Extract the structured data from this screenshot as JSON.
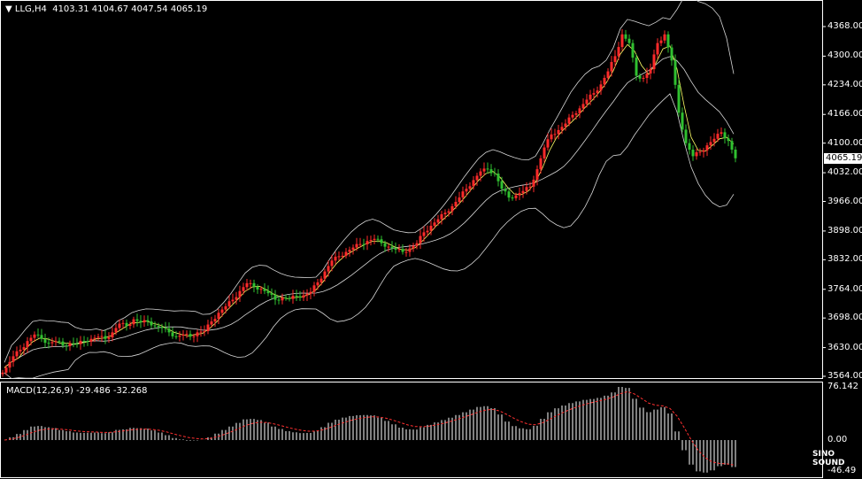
{
  "header": {
    "symbol": "LLG,H4",
    "open": "4103.31",
    "high": "4104.67",
    "low": "4047.54",
    "close": "4065.19"
  },
  "macd_header": {
    "label": "MACD(12,26,9)",
    "main": "-29.486",
    "signal": "-32.268"
  },
  "current_price": "4065.19",
  "price_ticks": [
    "4368.00",
    "4300.00",
    "4234.00",
    "4166.00",
    "4100.00",
    "4032.00",
    "3966.00",
    "3898.00",
    "3832.00",
    "3764.00",
    "3698.00",
    "3630.00",
    "3564.00"
  ],
  "macd_ticks": [
    "76.142",
    "0.00",
    "-46.49"
  ],
  "watermark": "SINO SOUND",
  "colors": {
    "up": "#ff2a2a",
    "down": "#30c030",
    "bands": "#d8d8d8",
    "ma": "#ffff66",
    "histogram": "#ffffff",
    "signal": "#ff3030",
    "background": "#000000"
  },
  "chart_data": {
    "type": "candlestick",
    "timeframe": "H4",
    "ylim": [
      3564,
      4368
    ],
    "macd_ylim": [
      -46.49,
      76.142
    ],
    "indicators": [
      "Bollinger Bands",
      "Moving Average",
      "MACD(12,26,9)"
    ],
    "close": [
      3584,
      3610,
      3625,
      3645,
      3660,
      3650,
      3640,
      3645,
      3635,
      3640,
      3638,
      3645,
      3650,
      3655,
      3650,
      3665,
      3685,
      3680,
      3695,
      3688,
      3690,
      3680,
      3675,
      3665,
      3655,
      3660,
      3655,
      3665,
      3668,
      3690,
      3710,
      3725,
      3740,
      3760,
      3778,
      3770,
      3765,
      3755,
      3740,
      3745,
      3742,
      3748,
      3750,
      3758,
      3780,
      3805,
      3830,
      3840,
      3850,
      3860,
      3868,
      3875,
      3880,
      3870,
      3862,
      3855,
      3850,
      3858,
      3870,
      3895,
      3910,
      3925,
      3940,
      3955,
      3975,
      3995,
      4015,
      4035,
      4040,
      4030,
      3995,
      3975,
      3980,
      3990,
      4000,
      4040,
      4090,
      4120,
      4130,
      4145,
      4165,
      4180,
      4200,
      4215,
      4235,
      4265,
      4300,
      4350,
      4330,
      4255,
      4250,
      4270,
      4330,
      4350,
      4290,
      4170,
      4100,
      4070,
      4080,
      4095,
      4110,
      4125,
      4105,
      4065.19
    ]
  }
}
